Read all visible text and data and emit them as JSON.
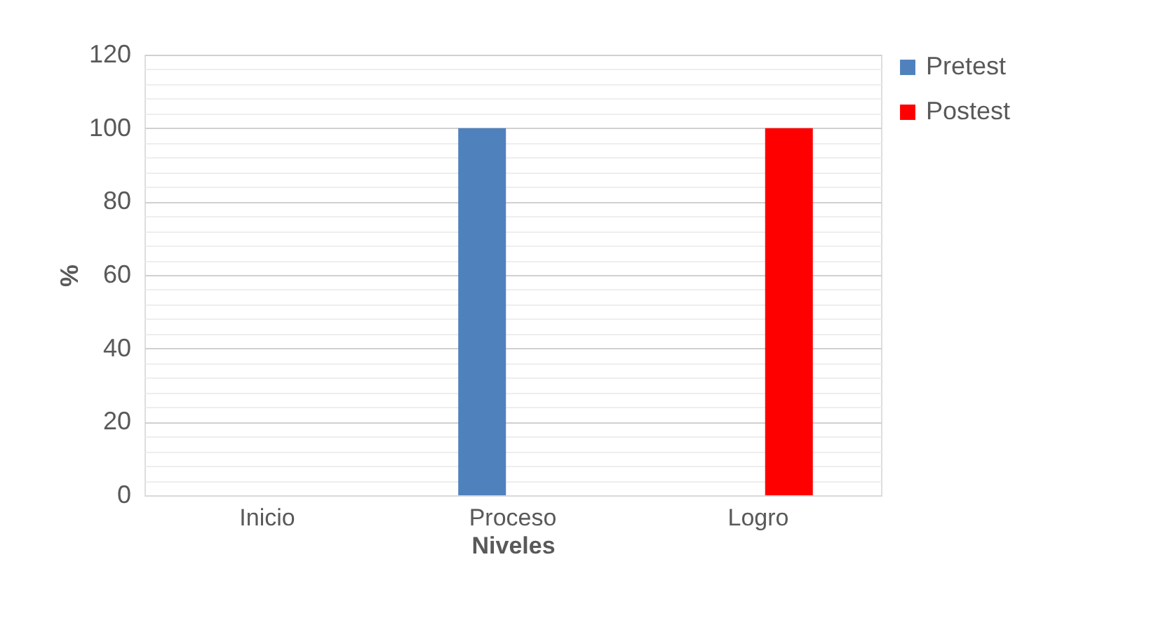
{
  "chart_data": {
    "type": "bar",
    "xlabel": "Niveles",
    "ylabel": "%",
    "categories": [
      "Inicio",
      "Proceso",
      "Logro"
    ],
    "series": [
      {
        "name": "Pretest",
        "color": "#4f81bd",
        "values": [
          0,
          100,
          0
        ]
      },
      {
        "name": "Postest",
        "color": "#ff0000",
        "values": [
          0,
          0,
          100
        ]
      }
    ],
    "ylim": [
      0,
      120
    ],
    "yticks": [
      0,
      {
        "value": 4,
        "label": null
      },
      {
        "value": 8,
        "label": null
      },
      {
        "value": 12,
        "label": null
      },
      {
        "value": 16,
        "label": null
      },
      20,
      {
        "value": 24,
        "label": null
      },
      {
        "value": 28,
        "label": null
      },
      {
        "value": 32,
        "label": null
      },
      {
        "value": 36,
        "label": null
      },
      40,
      {
        "value": 44,
        "label": null
      },
      {
        "value": 48,
        "label": null
      },
      {
        "value": 52,
        "label": null
      },
      {
        "value": 56,
        "label": null
      },
      60,
      {
        "value": 64,
        "label": null
      },
      {
        "value": 68,
        "label": null
      },
      {
        "value": 72,
        "label": null
      },
      {
        "value": 76,
        "label": null
      },
      80,
      {
        "value": 84,
        "label": null
      },
      {
        "value": 88,
        "label": null
      },
      {
        "value": 92,
        "label": null
      },
      {
        "value": 96,
        "label": null
      },
      100,
      {
        "value": 104,
        "label": null
      },
      {
        "value": 108,
        "label": null
      },
      {
        "value": 112,
        "label": null
      },
      {
        "value": 116,
        "label": null
      },
      120
    ],
    "grid": "y",
    "legend": "right"
  }
}
